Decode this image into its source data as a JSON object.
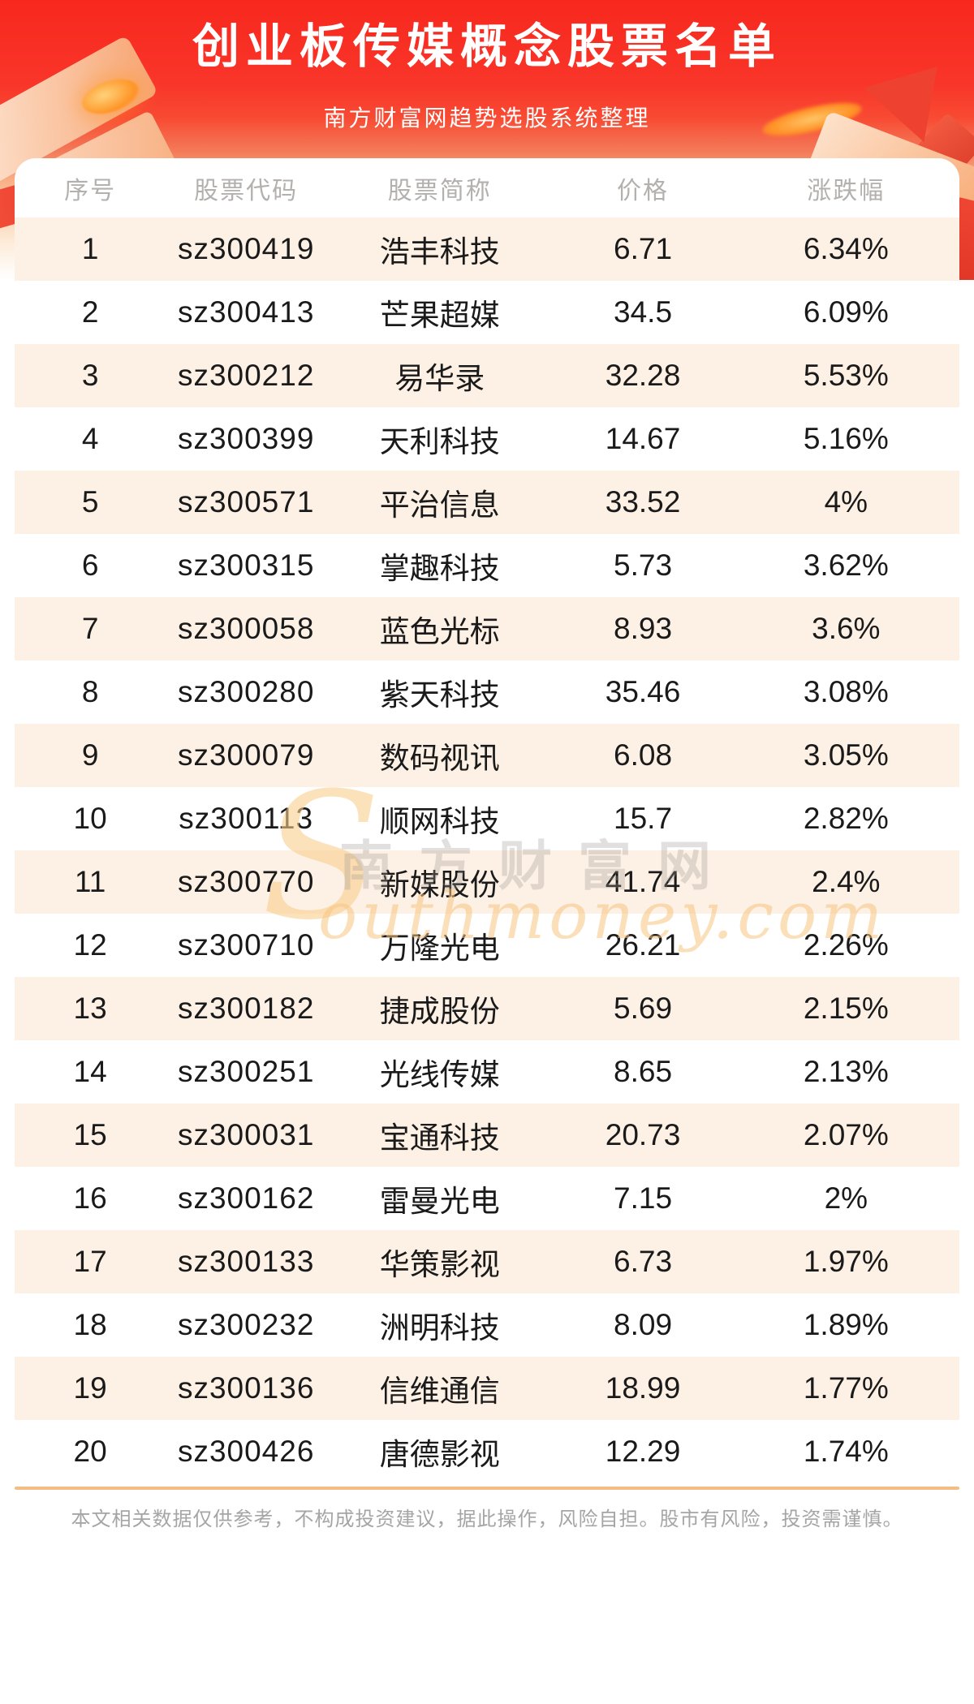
{
  "header": {
    "title": "创业板传媒概念股票名单",
    "subtitle": "南方财富网趋势选股系统整理"
  },
  "table": {
    "headers": [
      "序号",
      "股票代码",
      "股票简称",
      "价格",
      "涨跌幅"
    ],
    "rows": [
      [
        "1",
        "sz300419",
        "浩丰科技",
        "6.71",
        "6.34%"
      ],
      [
        "2",
        "sz300413",
        "芒果超媒",
        "34.5",
        "6.09%"
      ],
      [
        "3",
        "sz300212",
        "易华录",
        "32.28",
        "5.53%"
      ],
      [
        "4",
        "sz300399",
        "天利科技",
        "14.67",
        "5.16%"
      ],
      [
        "5",
        "sz300571",
        "平治信息",
        "33.52",
        "4%"
      ],
      [
        "6",
        "sz300315",
        "掌趣科技",
        "5.73",
        "3.62%"
      ],
      [
        "7",
        "sz300058",
        "蓝色光标",
        "8.93",
        "3.6%"
      ],
      [
        "8",
        "sz300280",
        "紫天科技",
        "35.46",
        "3.08%"
      ],
      [
        "9",
        "sz300079",
        "数码视讯",
        "6.08",
        "3.05%"
      ],
      [
        "10",
        "sz300113",
        "顺网科技",
        "15.7",
        "2.82%"
      ],
      [
        "11",
        "sz300770",
        "新媒股份",
        "41.74",
        "2.4%"
      ],
      [
        "12",
        "sz300710",
        "万隆光电",
        "26.21",
        "2.26%"
      ],
      [
        "13",
        "sz300182",
        "捷成股份",
        "5.69",
        "2.15%"
      ],
      [
        "14",
        "sz300251",
        "光线传媒",
        "8.65",
        "2.13%"
      ],
      [
        "15",
        "sz300031",
        "宝通科技",
        "20.73",
        "2.07%"
      ],
      [
        "16",
        "sz300162",
        "雷曼光电",
        "7.15",
        "2%"
      ],
      [
        "17",
        "sz300133",
        "华策影视",
        "6.73",
        "1.97%"
      ],
      [
        "18",
        "sz300232",
        "洲明科技",
        "8.09",
        "1.89%"
      ],
      [
        "19",
        "sz300136",
        "信维通信",
        "18.99",
        "1.77%"
      ],
      [
        "20",
        "sz300426",
        "唐德影视",
        "12.29",
        "1.74%"
      ]
    ]
  },
  "watermark": {
    "initial": "S",
    "chinese": "南方财富网",
    "english": "outhmoney.com"
  },
  "footer": {
    "disclaimer": "本文相关数据仅供参考，不构成投资建议，据此操作，风险自担。股市有风险，投资需谨慎。"
  },
  "colors": {
    "banner_red_top": "#f8281e",
    "banner_fade_bottom": "#f9b289",
    "row_alt_background": "#fdf0e4",
    "divider_orange": "#f3bd85",
    "header_text_gray": "#b3b0ae",
    "cell_text": "#1a1a1a",
    "footer_text_gray": "#a5a5a5",
    "watermark_orange": "#f8c480",
    "watermark_gray": "#9e9892",
    "title_text": "#ffffff"
  }
}
